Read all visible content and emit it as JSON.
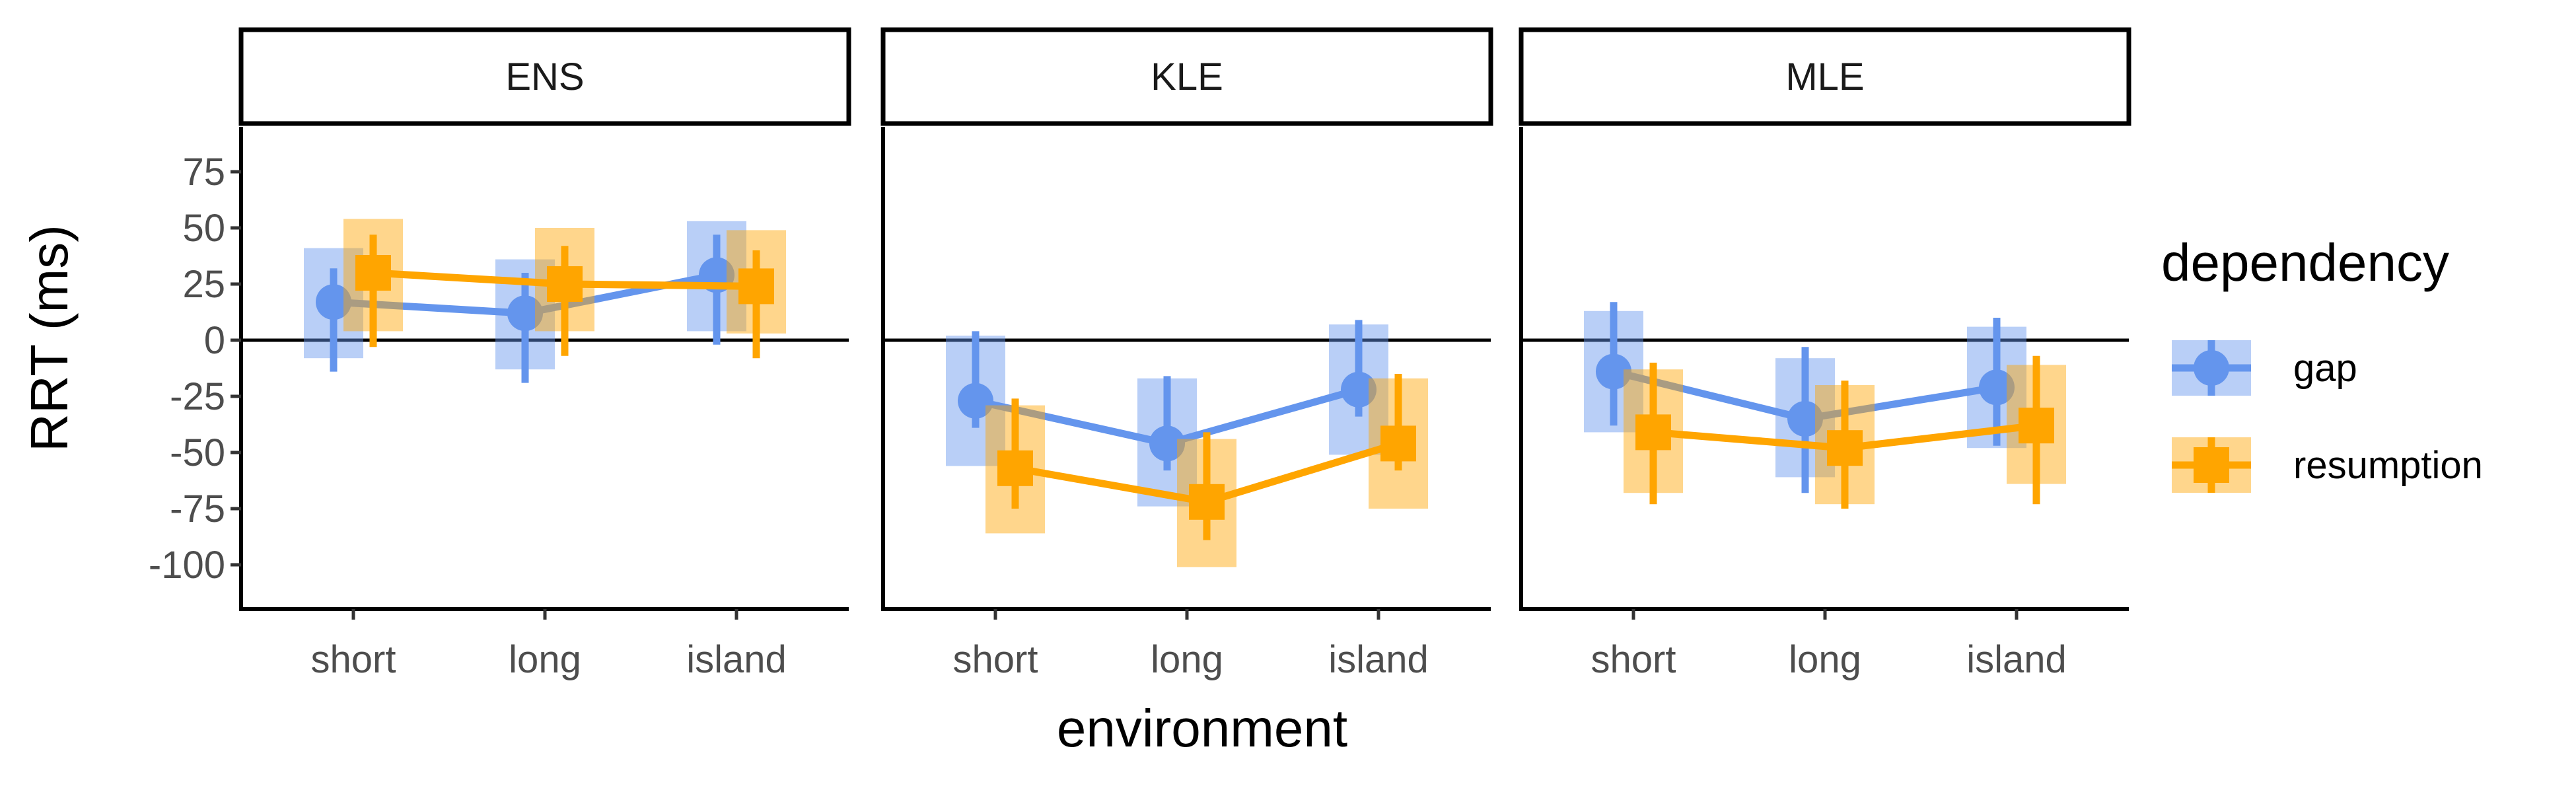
{
  "chart_data": {
    "type": "line",
    "title": "",
    "xlabel": "environment",
    "ylabel": "RRT (ms)",
    "ylim": [
      -120,
      95
    ],
    "yticks": [
      75,
      50,
      25,
      0,
      -25,
      -50,
      -75,
      -100
    ],
    "categories": [
      "short",
      "long",
      "island"
    ],
    "zero_line": true,
    "grid": false,
    "legend": {
      "title": "dependency",
      "position": "right",
      "entries": [
        "gap",
        "resumption"
      ]
    },
    "colors": {
      "gap": "#6495ED",
      "resumption": "#FFA500"
    },
    "panels": [
      {
        "label": "ENS",
        "series": [
          {
            "name": "gap",
            "values": [
              17,
              12,
              29
            ],
            "ci_low": [
              -14,
              -19,
              -2
            ],
            "ci_high": [
              32,
              30,
              47
            ],
            "band_low": [
              -8,
              -13,
              4
            ],
            "band_high": [
              41,
              36,
              53
            ]
          },
          {
            "name": "resumption",
            "values": [
              30,
              25,
              24
            ],
            "ci_low": [
              -3,
              -7,
              -8
            ],
            "ci_high": [
              47,
              42,
              40
            ],
            "band_low": [
              4,
              4,
              3
            ],
            "band_high": [
              54,
              50,
              49
            ]
          }
        ]
      },
      {
        "label": "KLE",
        "series": [
          {
            "name": "gap",
            "values": [
              -27,
              -46,
              -22
            ],
            "ci_low": [
              -39,
              -58,
              -34
            ],
            "ci_high": [
              4,
              -16,
              9
            ],
            "band_low": [
              -56,
              -74,
              -51
            ],
            "band_high": [
              2,
              -17,
              7
            ]
          },
          {
            "name": "resumption",
            "values": [
              -57,
              -72,
              -46
            ],
            "ci_low": [
              -75,
              -89,
              -58
            ],
            "ci_high": [
              -26,
              -41,
              -15
            ],
            "band_low": [
              -86,
              -101,
              -75
            ],
            "band_high": [
              -29,
              -44,
              -17
            ]
          }
        ]
      },
      {
        "label": "MLE",
        "series": [
          {
            "name": "gap",
            "values": [
              -14,
              -35,
              -21
            ],
            "ci_low": [
              -38,
              -68,
              -47
            ],
            "ci_high": [
              17,
              -3,
              10
            ],
            "band_low": [
              -41,
              -61,
              -48
            ],
            "band_high": [
              13,
              -8,
              6
            ]
          },
          {
            "name": "resumption",
            "values": [
              -41,
              -48,
              -38
            ],
            "ci_low": [
              -73,
              -75,
              -73
            ],
            "ci_high": [
              -10,
              -18,
              -7
            ],
            "band_low": [
              -68,
              -73,
              -64
            ],
            "band_high": [
              -13,
              -20,
              -11
            ]
          }
        ]
      }
    ]
  }
}
